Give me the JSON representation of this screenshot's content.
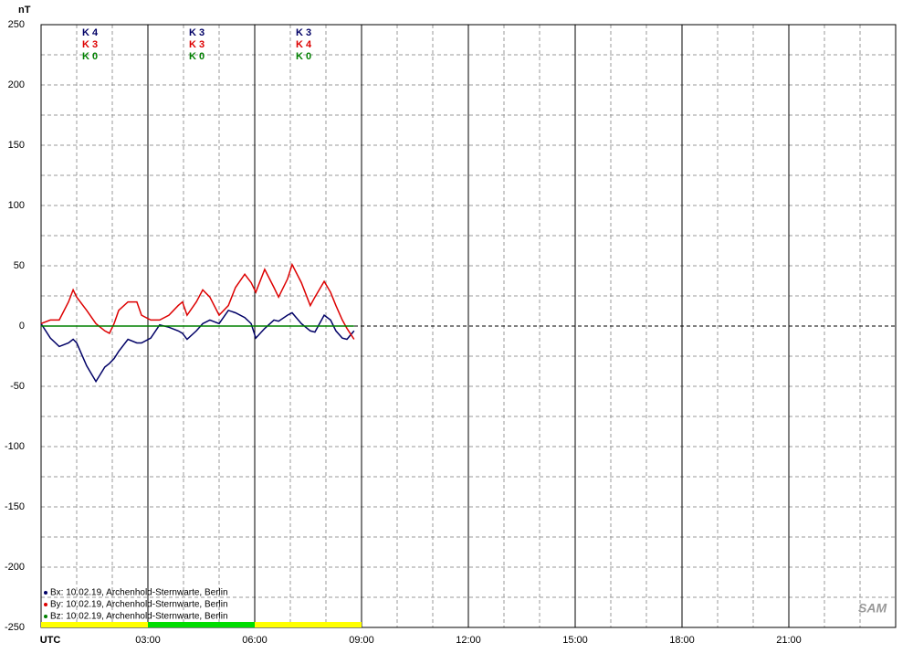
{
  "chart_data": {
    "type": "line",
    "y_label": "nT",
    "x": [
      0,
      0.26,
      0.51,
      0.77,
      0.9,
      1.0,
      1.28,
      1.54,
      1.79,
      1.92,
      2.05,
      2.18,
      2.44,
      2.69,
      2.82,
      3.08,
      3.33,
      3.59,
      3.85,
      3.97,
      4.1,
      4.36,
      4.54,
      4.74,
      5.0,
      5.26,
      5.46,
      5.72,
      5.9,
      6.03,
      6.28,
      6.54,
      6.67,
      6.92,
      7.05,
      7.31,
      7.56,
      7.69,
      7.95,
      8.13,
      8.28,
      8.46,
      8.59,
      8.79
    ],
    "series": [
      {
        "name": "Bx: 10.02.19, Archenhold-Sternwarte, Berlin",
        "color": "#000066",
        "values": [
          2,
          -10,
          -17,
          -14,
          -11,
          -14,
          -33,
          -46,
          -34,
          -31,
          -27,
          -21,
          -11,
          -14,
          -14,
          -10,
          1,
          -1,
          -4,
          -6,
          -11,
          -4,
          2,
          5,
          2,
          13,
          11,
          7,
          2,
          -10,
          -2,
          5,
          4,
          9,
          11,
          2,
          -4,
          -5,
          9,
          5,
          -4,
          -10,
          -11,
          -4
        ]
      },
      {
        "name": "By: 10.02.19, Archenhold-Sternwarte, Berlin",
        "color": "#dd0000",
        "values": [
          2,
          5,
          5,
          20,
          30,
          24,
          13,
          2,
          -4,
          -6,
          2,
          13,
          20,
          20,
          9,
          5,
          5,
          9,
          17,
          20,
          9,
          20,
          30,
          24,
          9,
          17,
          32,
          43,
          36,
          28,
          47,
          32,
          24,
          39,
          51,
          36,
          17,
          24,
          37,
          28,
          17,
          5,
          -2,
          -11
        ]
      },
      {
        "name": "Bz: 10.02.19, Archenhold-Sternwarte, Berlin",
        "color": "#008000",
        "values": [
          0,
          0,
          0,
          0,
          0,
          0,
          0,
          0,
          0,
          0,
          0,
          0,
          0,
          0,
          0,
          0,
          0,
          0,
          0,
          0,
          0,
          0,
          0,
          0,
          0,
          0,
          0,
          0,
          0,
          0,
          0,
          0,
          0,
          0,
          0,
          0,
          0,
          0,
          0,
          0,
          0,
          0,
          0,
          0
        ]
      }
    ],
    "k_indices": [
      [
        "K 4",
        "K 3",
        "K 0"
      ],
      [
        "K 3",
        "K 3",
        "K 0"
      ],
      [
        "K 3",
        "K 4",
        "K 0"
      ]
    ],
    "status_bar": [
      {
        "start": 0,
        "end": 3,
        "color": "#ffff00"
      },
      {
        "start": 3,
        "end": 6,
        "color": "#00dd00"
      },
      {
        "start": 6,
        "end": 9,
        "color": "#ffff00"
      }
    ],
    "xlim": [
      0,
      24
    ],
    "xticks": [
      {
        "value": 0,
        "label": "UTC"
      },
      {
        "value": 3,
        "label": "03:00"
      },
      {
        "value": 6,
        "label": "06:00"
      },
      {
        "value": 9,
        "label": "09:00"
      },
      {
        "value": 12,
        "label": "12:00"
      },
      {
        "value": 15,
        "label": "15:00"
      },
      {
        "value": 18,
        "label": "18:00"
      },
      {
        "value": 21,
        "label": "21:00"
      }
    ],
    "ylim": [
      -250,
      250
    ],
    "yticks": [
      -250,
      -200,
      -150,
      -100,
      -50,
      0,
      50,
      100,
      150,
      200,
      250
    ],
    "minor_grid": {
      "x": 1,
      "y": 25
    },
    "logo": "SAM"
  }
}
